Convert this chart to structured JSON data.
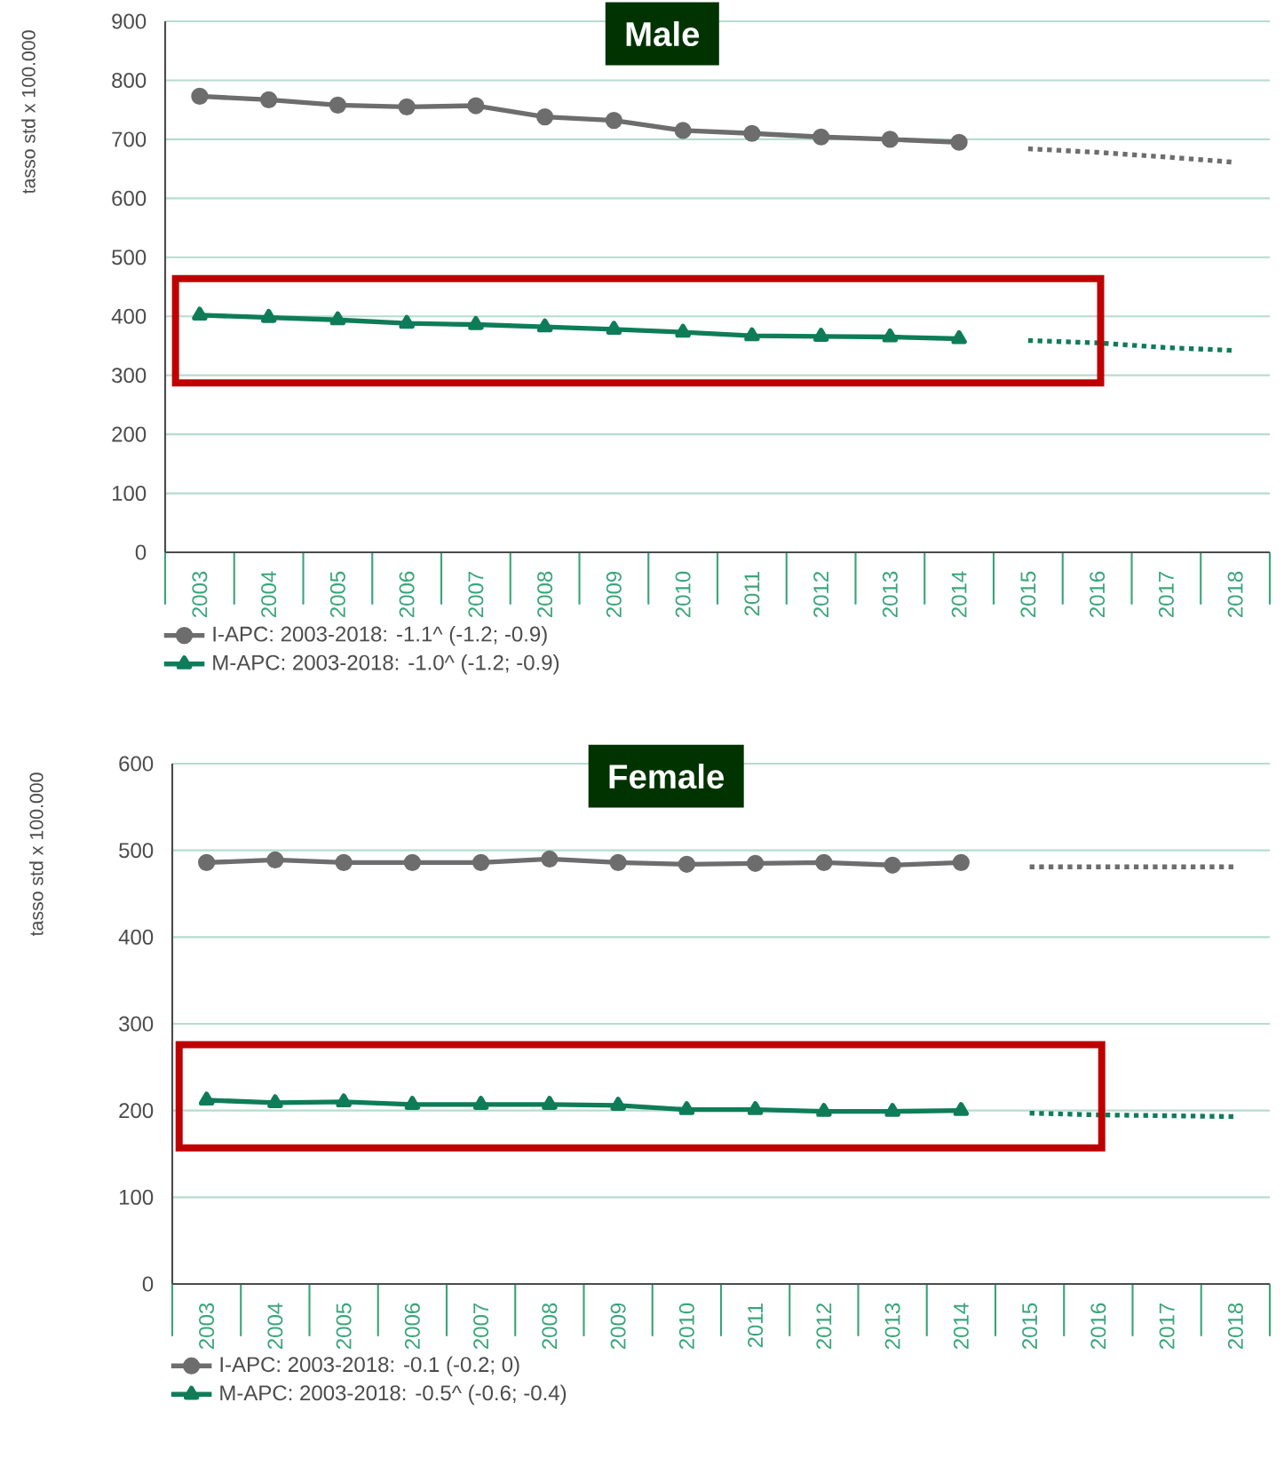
{
  "chart_data": [
    {
      "type": "line",
      "title": "Male",
      "ylabel": "tasso std x 100.000",
      "categories": [
        "2003",
        "2004",
        "2005",
        "2006",
        "2007",
        "2008",
        "2009",
        "2010",
        "2011",
        "2012",
        "2013",
        "2014",
        "2015",
        "2016",
        "2017",
        "2018"
      ],
      "series": [
        {
          "name": "I-APC: 2003-2018: -1.1^ (-1.2; -0.9)",
          "color": "#6d6d6d",
          "marker": "circle",
          "line_style": "solid",
          "values": [
            773,
            767,
            758,
            755,
            757,
            738,
            732,
            715,
            710,
            704,
            700,
            695,
            null,
            null,
            null,
            null
          ]
        },
        {
          "name": "M-APC: 2003-2018: -1.0^ (-1.2; -0.9)",
          "color": "#0e7d57",
          "marker": "triangle",
          "line_style": "solid",
          "values": [
            402,
            398,
            394,
            388,
            386,
            382,
            378,
            373,
            367,
            366,
            365,
            362,
            null,
            null,
            null,
            null
          ]
        },
        {
          "color": "#6d6d6d",
          "marker": "none",
          "line_style": "dotted",
          "values": [
            null,
            null,
            null,
            null,
            null,
            null,
            null,
            null,
            null,
            null,
            null,
            null,
            684,
            678,
            670,
            661
          ]
        },
        {
          "color": "#0e7d57",
          "marker": "none",
          "line_style": "dotted",
          "values": [
            null,
            null,
            null,
            null,
            null,
            null,
            null,
            null,
            null,
            null,
            null,
            null,
            359,
            355,
            347,
            342
          ]
        }
      ],
      "ylim": [
        0,
        900
      ],
      "yticks": [
        0,
        100,
        200,
        300,
        400,
        500,
        600,
        700,
        800,
        900
      ],
      "grid": "y",
      "legend": "bottom left"
    },
    {
      "type": "line",
      "title": "Female",
      "ylabel": "tasso std x 100.000",
      "categories": [
        "2003",
        "2004",
        "2005",
        "2006",
        "2007",
        "2008",
        "2009",
        "2010",
        "2011",
        "2012",
        "2013",
        "2014",
        "2015",
        "2016",
        "2017",
        "2018"
      ],
      "series": [
        {
          "name": "I-APC: 2003-2018: -0.1 (-0.2; 0)",
          "color": "#6d6d6d",
          "marker": "circle",
          "line_style": "solid",
          "values": [
            486,
            489,
            486,
            486,
            486,
            490,
            486,
            484,
            485,
            486,
            483,
            486,
            null,
            null,
            null,
            null
          ]
        },
        {
          "name": "M-APC: 2003-2018: -0.5^ (-0.6; -0.4)",
          "color": "#0e7d57",
          "marker": "triangle",
          "line_style": "solid",
          "values": [
            212,
            209,
            210,
            207,
            207,
            207,
            206,
            201,
            201,
            199,
            199,
            200,
            null,
            null,
            null,
            null
          ]
        },
        {
          "color": "#6d6d6d",
          "marker": "none",
          "line_style": "dotted",
          "values": [
            null,
            null,
            null,
            null,
            null,
            null,
            null,
            null,
            null,
            null,
            null,
            null,
            481,
            481,
            481,
            481
          ]
        },
        {
          "color": "#0e7d57",
          "marker": "none",
          "line_style": "dotted",
          "values": [
            null,
            null,
            null,
            null,
            null,
            null,
            null,
            null,
            null,
            null,
            null,
            null,
            197,
            195,
            194,
            193
          ]
        }
      ],
      "ylim": [
        0,
        600
      ],
      "yticks": [
        0,
        100,
        200,
        300,
        400,
        500,
        600
      ],
      "grid": "y",
      "legend": "bottom left"
    }
  ]
}
